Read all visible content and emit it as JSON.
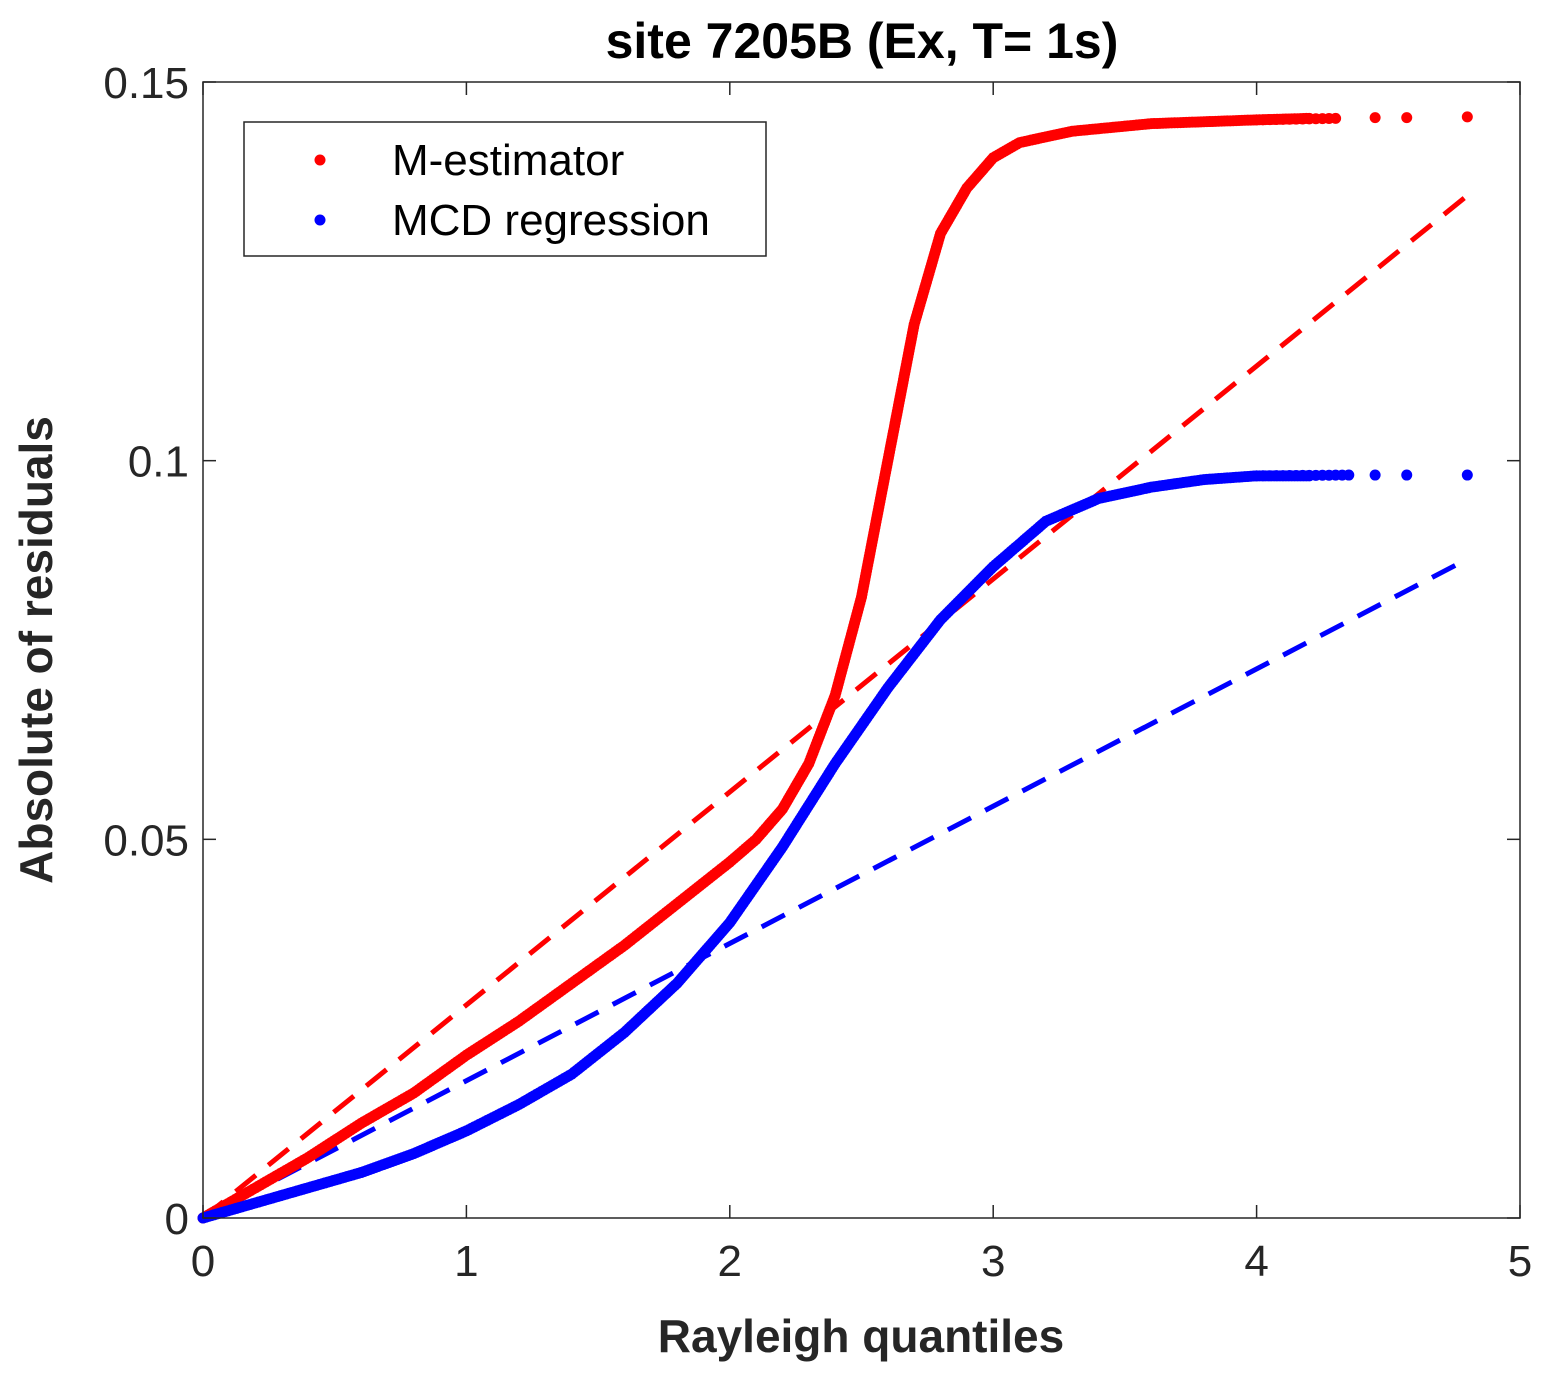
{
  "chart_data": {
    "type": "scatter",
    "title": "site 7205B (Ex, T= 1s)",
    "xlabel": "Rayleigh quantiles",
    "ylabel": "Absolute of residuals",
    "xlim": [
      0,
      5
    ],
    "ylim": [
      0,
      0.15
    ],
    "xticks": [
      0,
      1,
      2,
      3,
      4,
      5
    ],
    "xtick_labels": [
      "0",
      "1",
      "2",
      "3",
      "4",
      "5"
    ],
    "yticks": [
      0,
      0.05,
      0.1,
      0.15
    ],
    "ytick_labels": [
      "0",
      "0.05",
      "0.1",
      "0.15"
    ],
    "grid": false,
    "legend_position": "top-left",
    "series": [
      {
        "name": "M-estimator",
        "color": "#ff0000",
        "marker": "dot",
        "points": [
          [
            0,
            0
          ],
          [
            0.2,
            0.004
          ],
          [
            0.4,
            0.008
          ],
          [
            0.6,
            0.0125
          ],
          [
            0.8,
            0.0165
          ],
          [
            1.0,
            0.0215
          ],
          [
            1.2,
            0.026
          ],
          [
            1.4,
            0.031
          ],
          [
            1.6,
            0.036
          ],
          [
            1.8,
            0.0415
          ],
          [
            2.0,
            0.047
          ],
          [
            2.1,
            0.05
          ],
          [
            2.2,
            0.054
          ],
          [
            2.3,
            0.06
          ],
          [
            2.4,
            0.069
          ],
          [
            2.5,
            0.082
          ],
          [
            2.6,
            0.1
          ],
          [
            2.7,
            0.118
          ],
          [
            2.8,
            0.13
          ],
          [
            2.9,
            0.136
          ],
          [
            3.0,
            0.14
          ],
          [
            3.1,
            0.142
          ],
          [
            3.3,
            0.1435
          ],
          [
            3.6,
            0.1445
          ],
          [
            4.0,
            0.145
          ],
          [
            4.2,
            0.1452
          ],
          [
            4.3,
            0.1452
          ],
          [
            4.45,
            0.1453
          ],
          [
            4.57,
            0.1453
          ],
          [
            4.8,
            0.1454
          ]
        ],
        "reference_line": {
          "x": [
            0,
            4.8
          ],
          "y": [
            0,
            0.135
          ]
        }
      },
      {
        "name": "MCD regression",
        "color": "#0000ff",
        "marker": "dot",
        "points": [
          [
            0,
            0
          ],
          [
            0.2,
            0.002
          ],
          [
            0.4,
            0.004
          ],
          [
            0.6,
            0.006
          ],
          [
            0.8,
            0.0085
          ],
          [
            1.0,
            0.0115
          ],
          [
            1.2,
            0.015
          ],
          [
            1.4,
            0.019
          ],
          [
            1.6,
            0.0245
          ],
          [
            1.8,
            0.031
          ],
          [
            2.0,
            0.039
          ],
          [
            2.2,
            0.049
          ],
          [
            2.4,
            0.06
          ],
          [
            2.6,
            0.07
          ],
          [
            2.8,
            0.079
          ],
          [
            3.0,
            0.086
          ],
          [
            3.1,
            0.089
          ],
          [
            3.2,
            0.092
          ],
          [
            3.4,
            0.095
          ],
          [
            3.6,
            0.0965
          ],
          [
            3.8,
            0.0975
          ],
          [
            4.0,
            0.098
          ],
          [
            4.2,
            0.098
          ],
          [
            4.35,
            0.0981
          ],
          [
            4.45,
            0.0981
          ],
          [
            4.57,
            0.0981
          ],
          [
            4.8,
            0.0981
          ]
        ],
        "reference_line": {
          "x": [
            0,
            4.8
          ],
          "y": [
            0,
            0.087
          ]
        }
      }
    ]
  }
}
